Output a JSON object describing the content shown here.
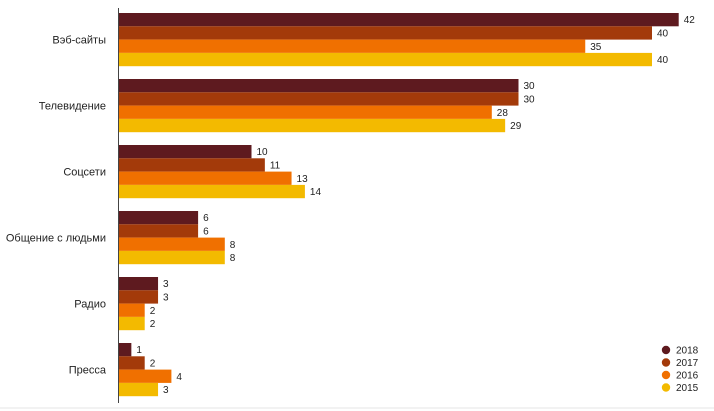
{
  "chart_data": {
    "type": "bar",
    "orientation": "horizontal",
    "categories": [
      "Вэб-сайты",
      "Телевидение",
      "Соцсети",
      "Общение с людьми",
      "Радио",
      "Пресса"
    ],
    "series": [
      {
        "name": "2018",
        "color": "#5E1A1F",
        "values": [
          42,
          30,
          10,
          6,
          3,
          1
        ]
      },
      {
        "name": "2017",
        "color": "#A33A0A",
        "values": [
          40,
          30,
          11,
          6,
          3,
          2
        ]
      },
      {
        "name": "2016",
        "color": "#F07000",
        "values": [
          35,
          28,
          13,
          8,
          2,
          4
        ]
      },
      {
        "name": "2015",
        "color": "#F3BA00",
        "values": [
          40,
          29,
          14,
          8,
          2,
          3
        ]
      }
    ],
    "xlim": [
      0,
      45
    ],
    "grid": false,
    "legend_position": "bottom-right",
    "data_labels": true
  }
}
